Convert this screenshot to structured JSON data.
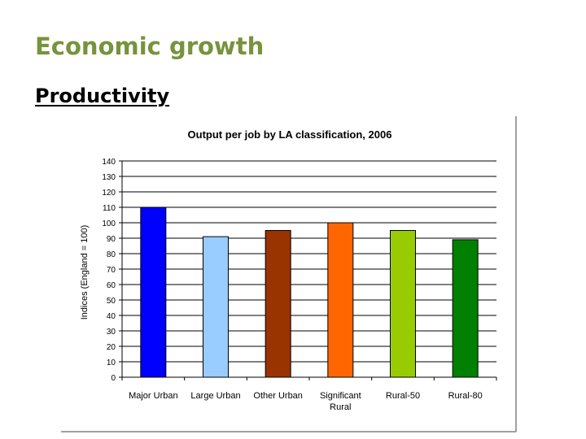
{
  "slide": {
    "title": "Economic growth",
    "subtitle": "Productivity"
  },
  "chart_data": {
    "type": "bar",
    "title": "Output per job by LA classification, 2006",
    "xlabel": "",
    "ylabel": "Indices (England = 100)",
    "ylim": [
      0,
      140
    ],
    "yticks": [
      0,
      10,
      20,
      30,
      40,
      50,
      60,
      70,
      80,
      90,
      100,
      110,
      120,
      130,
      140
    ],
    "grid": true,
    "legend": "none",
    "categories": [
      "Major Urban",
      "Large Urban",
      "Other Urban",
      "Significant Rural",
      "Rural-50",
      "Rural-80"
    ],
    "category_lines": [
      [
        "Major Urban"
      ],
      [
        "Large Urban"
      ],
      [
        "Other Urban"
      ],
      [
        "Significant",
        "Rural"
      ],
      [
        "Rural-50"
      ],
      [
        "Rural-80"
      ]
    ],
    "values": [
      110,
      91,
      95,
      100,
      95,
      89
    ],
    "colors": [
      "#0000ff",
      "#99ccff",
      "#993300",
      "#ff6600",
      "#99cc00",
      "#008000"
    ]
  }
}
